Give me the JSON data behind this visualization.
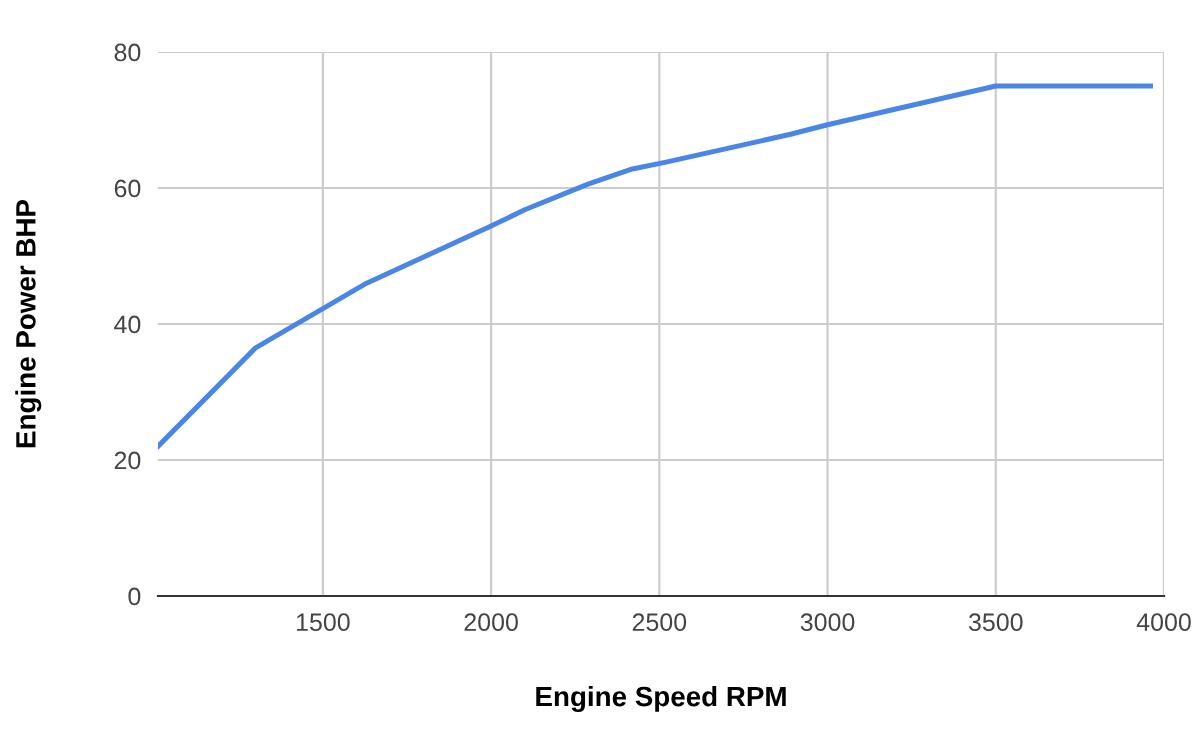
{
  "chart_data": {
    "type": "line",
    "xlabel": "Engine Speed RPM",
    "ylabel": "Engine Power BHP",
    "x": [
      1010,
      1300,
      1630,
      2000,
      2100,
      2290,
      2420,
      2520,
      2890,
      3000,
      3500,
      3960
    ],
    "series": [
      {
        "color": "#4a86e8",
        "values": [
          22,
          36.5,
          46,
          54.4,
          56.8,
          60.6,
          62.8,
          63.8,
          67.9,
          69.3,
          75,
          75
        ]
      }
    ],
    "xlim": [
      1010,
      4000
    ],
    "xticks": [
      1500,
      2000,
      2500,
      3000,
      3500,
      4000
    ],
    "ylim": [
      0,
      80
    ],
    "yticks": [
      0,
      20,
      40,
      60,
      80
    ],
    "grid": true,
    "marker": "none",
    "line_style": "solid"
  }
}
